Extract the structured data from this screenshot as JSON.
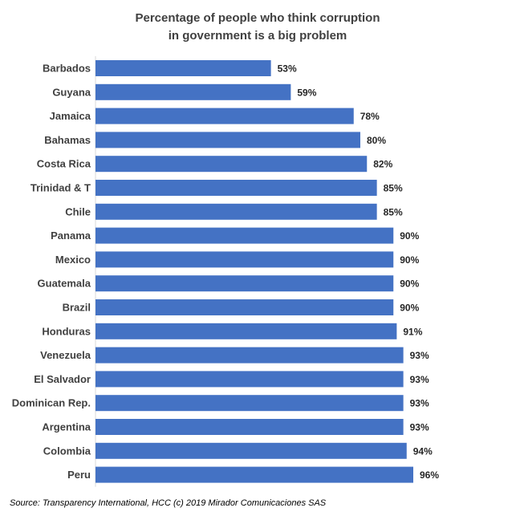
{
  "chart_data": {
    "type": "bar",
    "orientation": "horizontal",
    "title": "Percentage of people who think corruption in government is a big problem",
    "title_lines": [
      "Percentage of people who think corruption",
      "in government is a big problem"
    ],
    "categories": [
      "Barbados",
      "Guyana",
      "Jamaica",
      "Bahamas",
      "Costa Rica",
      "Trinidad & T",
      "Chile",
      "Panama",
      "Mexico",
      "Guatemala",
      "Brazil",
      "Honduras",
      "Venezuela",
      "El Salvador",
      "Dominican Rep.",
      "Argentina",
      "Colombia",
      "Peru"
    ],
    "values": [
      53,
      59,
      78,
      80,
      82,
      85,
      85,
      90,
      90,
      90,
      90,
      91,
      93,
      93,
      93,
      93,
      94,
      96
    ],
    "value_labels": [
      "53%",
      "59%",
      "78%",
      "80%",
      "82%",
      "85%",
      "85%",
      "90%",
      "90%",
      "90%",
      "90%",
      "91%",
      "93%",
      "93%",
      "93%",
      "93%",
      "94%",
      "96%"
    ],
    "xlim": [
      0,
      100
    ],
    "grid": false,
    "bar_color": "#4472C4"
  },
  "source": "Source:  Transparency International, HCC (c) 2019 Mirador Comunicaciones SAS"
}
